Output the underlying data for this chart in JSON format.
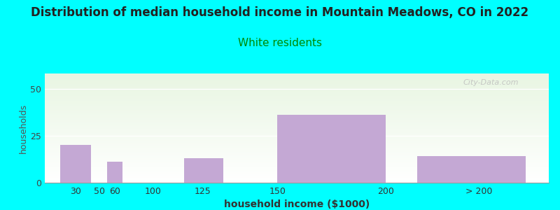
{
  "title": "Distribution of median household income in Mountain Meadows, CO in 2022",
  "subtitle": "White residents",
  "xlabel": "household income ($1000)",
  "ylabel": "households",
  "bar_values": [
    20,
    0,
    11,
    0,
    13,
    36,
    0,
    14
  ],
  "bar_lefts": [
    20,
    40,
    50,
    60,
    100,
    160,
    230,
    250
  ],
  "bar_widths": [
    20,
    10,
    10,
    40,
    25,
    70,
    20,
    70
  ],
  "bar_color": "#c4a8d4",
  "background_outer": "#00ffff",
  "background_top_color": "#e8f5e2",
  "background_bottom_color": "#ffffff",
  "title_fontsize": 12,
  "title_color": "#222222",
  "subtitle_fontsize": 11,
  "subtitle_color": "#008800",
  "ylabel_color": "#555555",
  "xlabel_color": "#333333",
  "yticks": [
    0,
    25,
    50
  ],
  "ylim": [
    0,
    58
  ],
  "xlim": [
    10,
    335
  ],
  "watermark": "City-Data.com",
  "tick_labels": [
    "30",
    "50",
    "60",
    "100",
    "125",
    "150",
    "200",
    "> 200"
  ],
  "tick_positions": [
    30,
    45,
    55,
    80,
    112,
    160,
    230,
    290
  ]
}
